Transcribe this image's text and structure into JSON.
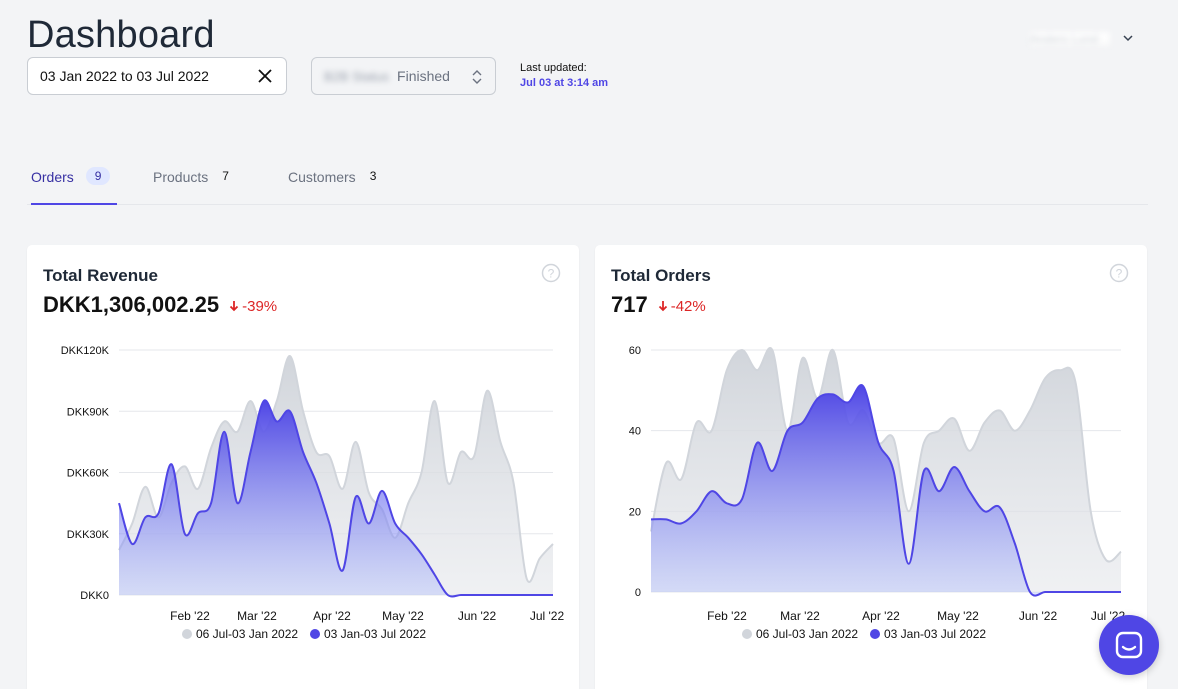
{
  "page": {
    "title": "Dashboard"
  },
  "filters": {
    "date_range": "03 Jan 2022 to 03 Jul 2022",
    "status_blurred": "B2B Status",
    "status_value": "Finished"
  },
  "last_updated": {
    "label": "Last updated:",
    "value": "Jul 03 at 3:14 am"
  },
  "user_menu": {
    "label": "Anders Lund"
  },
  "tabs": [
    {
      "label": "Orders",
      "count": "9"
    },
    {
      "label": "Products",
      "count": "7"
    },
    {
      "label": "Customers",
      "count": "3"
    }
  ],
  "cards": {
    "revenue": {
      "title": "Total Revenue",
      "value": "DKK1,306,002.25",
      "delta": "-39%"
    },
    "orders": {
      "title": "Total Orders",
      "value": "717",
      "delta": "-42%"
    }
  },
  "colors": {
    "accent": "#4f46e5",
    "previous": "#d1d5db",
    "negative": "#dc2626"
  },
  "chart_data": [
    {
      "type": "area",
      "yticks": [
        "DKK120K",
        "DKK90K",
        "DKK60K",
        "DKK30K",
        "DKK0"
      ],
      "ylim": [
        0,
        120000
      ],
      "xticks": [
        "Feb '22",
        "Mar '22",
        "Apr '22",
        "May '22",
        "Jun '22",
        "Jul '22"
      ],
      "series": [
        {
          "name": "06 Jul-03 Jan 2022",
          "values": [
            22000,
            35000,
            53000,
            38000,
            55000,
            63000,
            52000,
            72000,
            85000,
            80000,
            95000,
            80000,
            95000,
            117000,
            90000,
            70000,
            68000,
            52000,
            75000,
            50000,
            42000,
            28000,
            45000,
            60000,
            95000,
            55000,
            70000,
            68000,
            100000,
            75000,
            55000,
            8000,
            18000,
            25000
          ]
        },
        {
          "name": "03 Jan-03 Jul 2022",
          "values": [
            45000,
            25000,
            38000,
            40000,
            64000,
            30000,
            40000,
            45000,
            80000,
            45000,
            70000,
            95000,
            85000,
            90000,
            70000,
            55000,
            35000,
            12000,
            48000,
            35000,
            51000,
            35000,
            28000,
            20000,
            10000,
            0,
            0,
            0,
            0,
            0,
            0,
            0,
            0,
            0
          ]
        }
      ]
    },
    {
      "type": "area",
      "yticks": [
        "60",
        "40",
        "20",
        "0"
      ],
      "ylim": [
        0,
        60
      ],
      "xticks": [
        "Feb '22",
        "Mar '22",
        "Apr '22",
        "May '22",
        "Jun '22",
        "Jul '22"
      ],
      "series": [
        {
          "name": "06 Jul-03 Jan 2022",
          "values": [
            15,
            32,
            28,
            42,
            40,
            55,
            60,
            55,
            60,
            40,
            58,
            48,
            60,
            42,
            45,
            37,
            38,
            20,
            37,
            40,
            43,
            35,
            42,
            45,
            40,
            45,
            53,
            55,
            52,
            20,
            8,
            10
          ]
        },
        {
          "name": "03 Jan-03 Jul 2022",
          "values": [
            18,
            18,
            17,
            20,
            25,
            22,
            23,
            37,
            30,
            40,
            42,
            48,
            49,
            47,
            51,
            37,
            30,
            7,
            30,
            25,
            31,
            25,
            20,
            21,
            12,
            0,
            0,
            0,
            0,
            0,
            0,
            0
          ]
        }
      ]
    }
  ]
}
